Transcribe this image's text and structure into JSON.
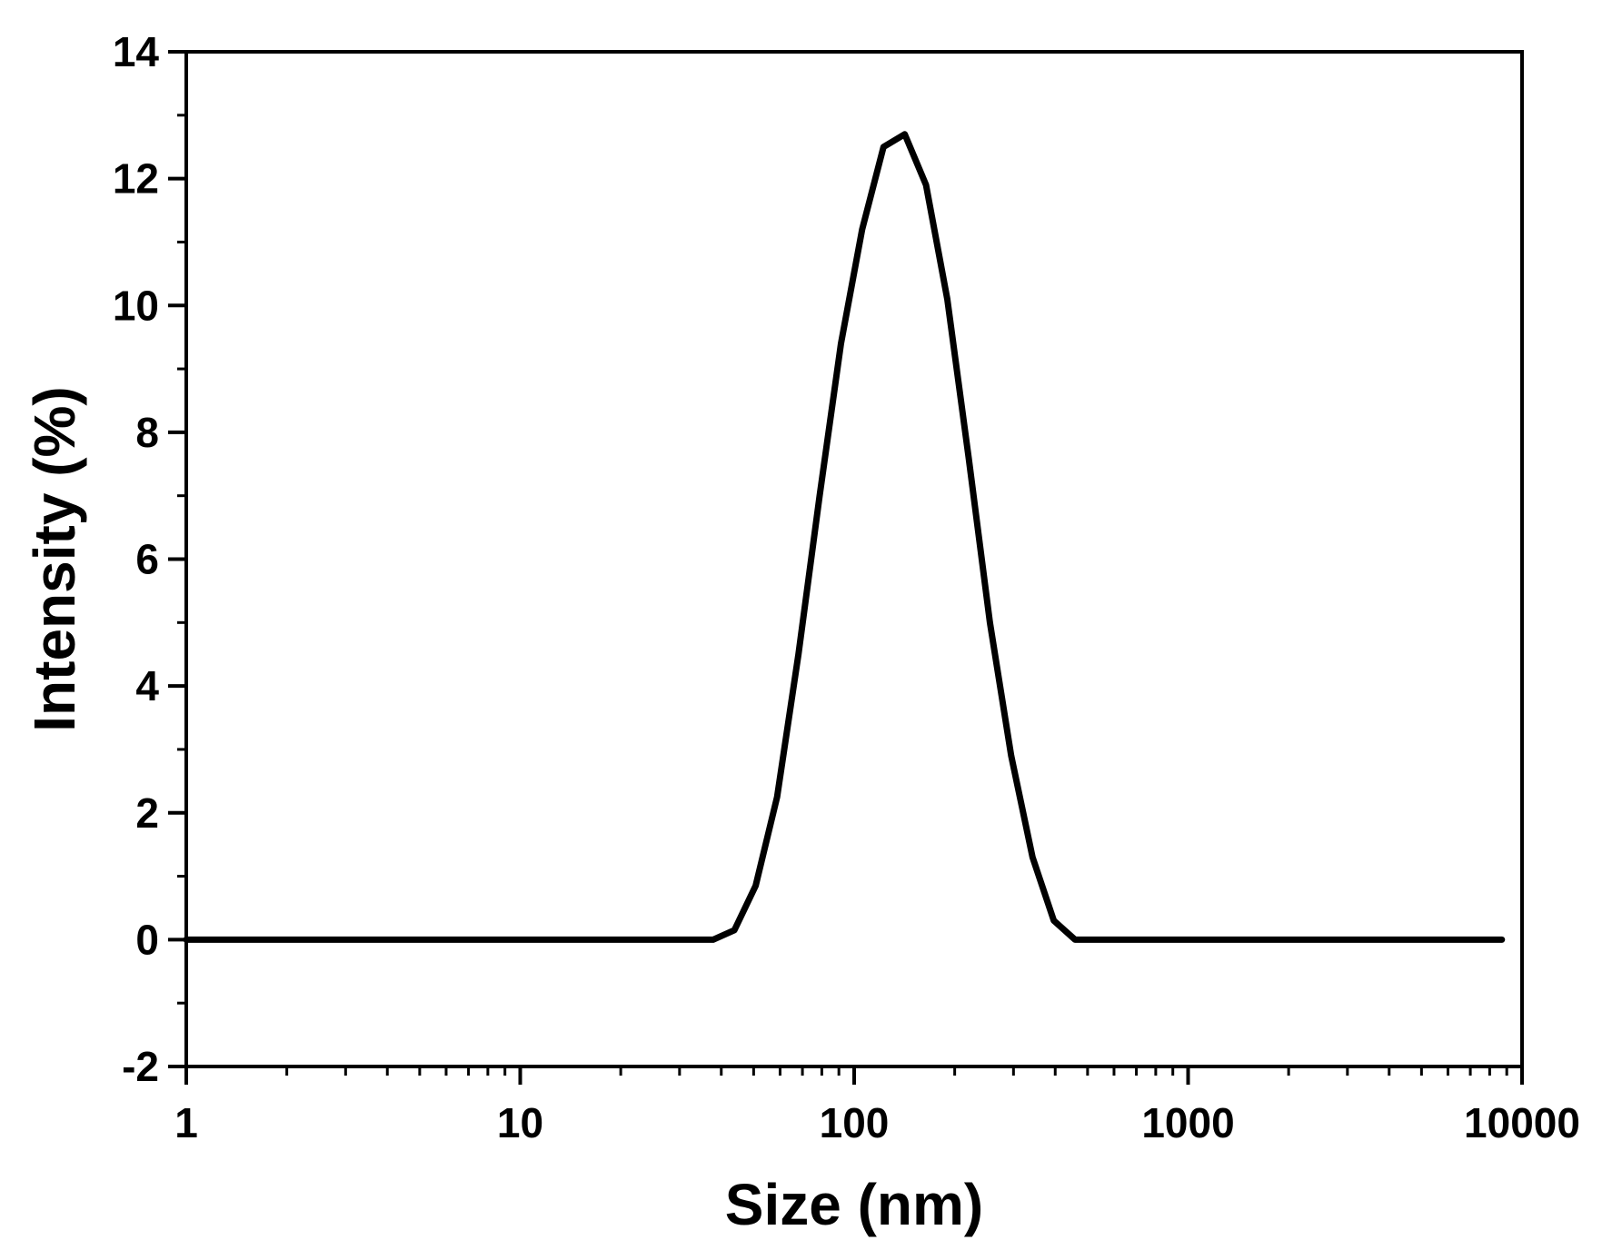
{
  "chart_data": {
    "type": "line",
    "title": "",
    "xlabel": "Size (nm)",
    "ylabel": "Intensity (%)",
    "xscale": "log",
    "xlim": [
      1,
      10000
    ],
    "ylim": [
      -2,
      14
    ],
    "grid": false,
    "xticks": [
      {
        "value": 1,
        "label": "1"
      },
      {
        "value": 10,
        "label": "10"
      },
      {
        "value": 100,
        "label": "100"
      },
      {
        "value": 1000,
        "label": "1000"
      },
      {
        "value": 10000,
        "label": "10000"
      }
    ],
    "yticks": [
      {
        "value": -2,
        "label": "-2"
      },
      {
        "value": 0,
        "label": "0"
      },
      {
        "value": 2,
        "label": "2"
      },
      {
        "value": 4,
        "label": "4"
      },
      {
        "value": 6,
        "label": "6"
      },
      {
        "value": 8,
        "label": "8"
      },
      {
        "value": 10,
        "label": "10"
      },
      {
        "value": 12,
        "label": "12"
      },
      {
        "value": 14,
        "label": "14"
      }
    ],
    "series": [
      {
        "color": "#000000",
        "x": [
          1,
          37.8,
          43.8,
          50.7,
          58.8,
          68.1,
          78.8,
          91.3,
          105.7,
          122.4,
          141.8,
          164.2,
          190.1,
          220.2,
          255.0,
          295.3,
          342.0,
          396.1,
          458.7,
          8700
        ],
        "y": [
          0,
          0,
          0.15,
          0.85,
          2.25,
          4.5,
          7.0,
          9.4,
          11.2,
          12.5,
          12.7,
          11.9,
          10.1,
          7.6,
          5.0,
          2.9,
          1.3,
          0.3,
          0,
          0
        ]
      }
    ]
  }
}
